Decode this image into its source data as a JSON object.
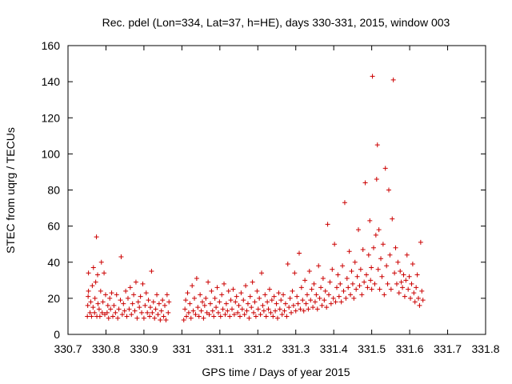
{
  "chart_data": {
    "type": "scatter",
    "title": "Rec. pdel (Lon=334, Lat=37, h=HE), days 330-331, 2015, window 003",
    "xlabel": "GPS time / Days of year 2015",
    "ylabel": "STEC from uqrg / TECUs",
    "xlim": [
      330.7,
      331.8
    ],
    "ylim": [
      0,
      160
    ],
    "xticks": [
      "330.7",
      "330.8",
      "330.9",
      "331",
      "331.1",
      "331.2",
      "331.3",
      "331.4",
      "331.5",
      "331.6",
      "331.7",
      "331.8"
    ],
    "yticks": [
      "0",
      "20",
      "40",
      "60",
      "80",
      "100",
      "120",
      "140",
      "160"
    ],
    "grid": false,
    "marker": "+",
    "color": "#cc0000",
    "series": [
      {
        "name": "STEC",
        "points": [
          [
            330.751,
            10
          ],
          [
            330.752,
            16
          ],
          [
            330.753,
            21
          ],
          [
            330.754,
            24
          ],
          [
            330.754,
            34
          ],
          [
            330.758,
            12
          ],
          [
            330.76,
            18
          ],
          [
            330.762,
            10
          ],
          [
            330.764,
            27
          ],
          [
            330.766,
            15
          ],
          [
            330.767,
            37
          ],
          [
            330.77,
            12
          ],
          [
            330.771,
            20
          ],
          [
            330.773,
            29
          ],
          [
            330.775,
            54
          ],
          [
            330.776,
            10
          ],
          [
            330.778,
            33
          ],
          [
            330.779,
            17
          ],
          [
            330.782,
            14
          ],
          [
            330.784,
            10
          ],
          [
            330.786,
            24
          ],
          [
            330.788,
            40
          ],
          [
            330.79,
            12
          ],
          [
            330.792,
            18
          ],
          [
            330.795,
            34
          ],
          [
            330.797,
            11
          ],
          [
            330.799,
            22
          ],
          [
            330.803,
            12
          ],
          [
            330.805,
            16
          ],
          [
            330.807,
            9
          ],
          [
            330.81,
            20
          ],
          [
            330.812,
            14
          ],
          [
            330.815,
            23
          ],
          [
            330.818,
            10
          ],
          [
            330.821,
            16
          ],
          [
            330.825,
            12
          ],
          [
            330.828,
            22
          ],
          [
            330.831,
            9
          ],
          [
            330.834,
            14
          ],
          [
            330.838,
            19
          ],
          [
            330.84,
            43
          ],
          [
            330.843,
            11
          ],
          [
            330.846,
            17
          ],
          [
            330.849,
            13
          ],
          [
            330.852,
            24
          ],
          [
            330.855,
            10
          ],
          [
            330.858,
            20
          ],
          [
            330.861,
            14
          ],
          [
            330.864,
            26
          ],
          [
            330.867,
            11
          ],
          [
            330.87,
            17
          ],
          [
            330.873,
            22
          ],
          [
            330.876,
            13
          ],
          [
            330.879,
            29
          ],
          [
            330.882,
            9
          ],
          [
            330.885,
            18
          ],
          [
            330.888,
            15
          ],
          [
            330.891,
            21
          ],
          [
            330.894,
            12
          ],
          [
            330.897,
            28
          ],
          [
            330.9,
            9
          ],
          [
            330.903,
            16
          ],
          [
            330.906,
            23
          ],
          [
            330.909,
            12
          ],
          [
            330.912,
            19
          ],
          [
            330.915,
            10
          ],
          [
            330.917,
            15
          ],
          [
            330.92,
            35
          ],
          [
            330.922,
            12
          ],
          [
            330.925,
            18
          ],
          [
            330.928,
            9
          ],
          [
            330.931,
            14
          ],
          [
            330.934,
            22
          ],
          [
            330.937,
            11
          ],
          [
            330.94,
            17
          ],
          [
            330.943,
            8
          ],
          [
            330.946,
            13
          ],
          [
            330.949,
            19
          ],
          [
            330.952,
            10
          ],
          [
            330.955,
            16
          ],
          [
            330.958,
            8
          ],
          [
            330.961,
            22
          ],
          [
            330.964,
            12
          ],
          [
            330.966,
            18
          ],
          [
            331.005,
            8
          ],
          [
            331.008,
            14
          ],
          [
            331.01,
            19
          ],
          [
            331.012,
            10
          ],
          [
            331.015,
            23
          ],
          [
            331.018,
            12
          ],
          [
            331.021,
            17
          ],
          [
            331.024,
            9
          ],
          [
            331.027,
            27
          ],
          [
            331.03,
            13
          ],
          [
            331.033,
            20
          ],
          [
            331.036,
            11
          ],
          [
            331.039,
            31
          ],
          [
            331.042,
            15
          ],
          [
            331.045,
            10
          ],
          [
            331.048,
            22
          ],
          [
            331.051,
            13
          ],
          [
            331.054,
            18
          ],
          [
            331.057,
            9
          ],
          [
            331.06,
            16
          ],
          [
            331.063,
            20
          ],
          [
            331.066,
            12
          ],
          [
            331.069,
            29
          ],
          [
            331.072,
            11
          ],
          [
            331.075,
            17
          ],
          [
            331.078,
            24
          ],
          [
            331.081,
            13
          ],
          [
            331.084,
            10
          ],
          [
            331.087,
            20
          ],
          [
            331.09,
            15
          ],
          [
            331.093,
            26
          ],
          [
            331.096,
            12
          ],
          [
            331.099,
            18
          ],
          [
            331.102,
            10
          ],
          [
            331.105,
            22
          ],
          [
            331.108,
            14
          ],
          [
            331.111,
            28
          ],
          [
            331.114,
            11
          ],
          [
            331.117,
            17
          ],
          [
            331.12,
            13
          ],
          [
            331.123,
            24
          ],
          [
            331.126,
            10
          ],
          [
            331.129,
            19
          ],
          [
            331.132,
            14
          ],
          [
            331.135,
            25
          ],
          [
            331.138,
            11
          ],
          [
            331.141,
            18
          ],
          [
            331.144,
            21
          ],
          [
            331.147,
            12
          ],
          [
            331.15,
            16
          ],
          [
            331.153,
            10
          ],
          [
            331.156,
            23
          ],
          [
            331.159,
            14
          ],
          [
            331.162,
            19
          ],
          [
            331.165,
            11
          ],
          [
            331.168,
            27
          ],
          [
            331.171,
            13
          ],
          [
            331.174,
            17
          ],
          [
            331.177,
            9
          ],
          [
            331.18,
            21
          ],
          [
            331.183,
            15
          ],
          [
            331.186,
            29
          ],
          [
            331.189,
            12
          ],
          [
            331.192,
            18
          ],
          [
            331.195,
            10
          ],
          [
            331.198,
            24
          ],
          [
            331.201,
            14
          ],
          [
            331.204,
            20
          ],
          [
            331.207,
            11
          ],
          [
            331.21,
            34
          ],
          [
            331.213,
            16
          ],
          [
            331.216,
            13
          ],
          [
            331.219,
            22
          ],
          [
            331.222,
            10
          ],
          [
            331.225,
            18
          ],
          [
            331.228,
            14
          ],
          [
            331.231,
            25
          ],
          [
            331.234,
            12
          ],
          [
            331.237,
            19
          ],
          [
            331.24,
            10
          ],
          [
            331.243,
            21
          ],
          [
            331.246,
            13
          ],
          [
            331.249,
            17
          ],
          [
            331.252,
            9
          ],
          [
            331.255,
            23
          ],
          [
            331.258,
            14
          ],
          [
            331.261,
            19
          ],
          [
            331.264,
            11
          ],
          [
            331.267,
            22
          ],
          [
            331.27,
            13
          ],
          [
            331.273,
            17
          ],
          [
            331.276,
            10
          ],
          [
            331.279,
            39
          ],
          [
            331.282,
            15
          ],
          [
            331.285,
            20
          ],
          [
            331.288,
            12
          ],
          [
            331.291,
            24
          ],
          [
            331.294,
            16
          ],
          [
            331.297,
            34
          ],
          [
            331.3,
            13
          ],
          [
            331.303,
            21
          ],
          [
            331.306,
            17
          ],
          [
            331.309,
            45
          ],
          [
            331.312,
            14
          ],
          [
            331.315,
            26
          ],
          [
            331.318,
            19
          ],
          [
            331.321,
            13
          ],
          [
            331.324,
            30
          ],
          [
            331.327,
            17
          ],
          [
            331.33,
            22
          ],
          [
            331.333,
            14
          ],
          [
            331.336,
            35
          ],
          [
            331.339,
            19
          ],
          [
            331.342,
            25
          ],
          [
            331.345,
            15
          ],
          [
            331.348,
            28
          ],
          [
            331.351,
            18
          ],
          [
            331.354,
            22
          ],
          [
            331.357,
            14
          ],
          [
            331.36,
            38
          ],
          [
            331.363,
            20
          ],
          [
            331.366,
            26
          ],
          [
            331.369,
            16
          ],
          [
            331.372,
            31
          ],
          [
            331.375,
            19
          ],
          [
            331.378,
            24
          ],
          [
            331.381,
            15
          ],
          [
            331.384,
            61
          ],
          [
            331.387,
            22
          ],
          [
            331.39,
            29
          ],
          [
            331.393,
            17
          ],
          [
            331.396,
            36
          ],
          [
            331.399,
            20
          ],
          [
            331.402,
            50
          ],
          [
            331.405,
            18
          ],
          [
            331.408,
            26
          ],
          [
            331.411,
            33
          ],
          [
            331.414,
            21
          ],
          [
            331.417,
            28
          ],
          [
            331.42,
            18
          ],
          [
            331.423,
            38
          ],
          [
            331.426,
            24
          ],
          [
            331.429,
            73
          ],
          [
            331.432,
            20
          ],
          [
            331.435,
            31
          ],
          [
            331.438,
            26
          ],
          [
            331.441,
            46
          ],
          [
            331.444,
            22
          ],
          [
            331.447,
            35
          ],
          [
            331.45,
            28
          ],
          [
            331.453,
            20
          ],
          [
            331.456,
            40
          ],
          [
            331.459,
            25
          ],
          [
            331.462,
            32
          ],
          [
            331.465,
            58
          ],
          [
            331.468,
            27
          ],
          [
            331.471,
            36
          ],
          [
            331.474,
            22
          ],
          [
            331.477,
            47
          ],
          [
            331.48,
            29
          ],
          [
            331.483,
            84
          ],
          [
            331.486,
            33
          ],
          [
            331.489,
            26
          ],
          [
            331.492,
            44
          ],
          [
            331.495,
            63
          ],
          [
            331.497,
            30
          ],
          [
            331.499,
            37
          ],
          [
            331.5,
            25
          ],
          [
            331.502,
            143
          ],
          [
            331.505,
            48
          ],
          [
            331.508,
            28
          ],
          [
            331.511,
            55
          ],
          [
            331.513,
            86
          ],
          [
            331.515,
            105
          ],
          [
            331.517,
            36
          ],
          [
            331.519,
            58
          ],
          [
            331.521,
            25
          ],
          [
            331.524,
            42
          ],
          [
            331.527,
            32
          ],
          [
            331.53,
            50
          ],
          [
            331.533,
            22
          ],
          [
            331.536,
            92
          ],
          [
            331.539,
            38
          ],
          [
            331.542,
            28
          ],
          [
            331.545,
            80
          ],
          [
            331.548,
            44
          ],
          [
            331.551,
            25
          ],
          [
            331.554,
            64
          ],
          [
            331.557,
            141
          ],
          [
            331.56,
            34
          ],
          [
            331.563,
            48
          ],
          [
            331.566,
            28
          ],
          [
            331.569,
            40
          ],
          [
            331.572,
            23
          ],
          [
            331.575,
            35
          ],
          [
            331.578,
            29
          ],
          [
            331.581,
            26
          ],
          [
            331.584,
            33
          ],
          [
            331.587,
            21
          ],
          [
            331.59,
            30
          ],
          [
            331.593,
            44
          ],
          [
            331.596,
            25
          ],
          [
            331.599,
            32
          ],
          [
            331.602,
            20
          ],
          [
            331.605,
            28
          ],
          [
            331.608,
            39
          ],
          [
            331.611,
            23
          ],
          [
            331.614,
            18
          ],
          [
            331.617,
            26
          ],
          [
            331.62,
            33
          ],
          [
            331.623,
            20
          ],
          [
            331.626,
            16
          ],
          [
            331.629,
            51
          ],
          [
            331.632,
            24
          ],
          [
            331.635,
            19
          ]
        ]
      }
    ]
  }
}
